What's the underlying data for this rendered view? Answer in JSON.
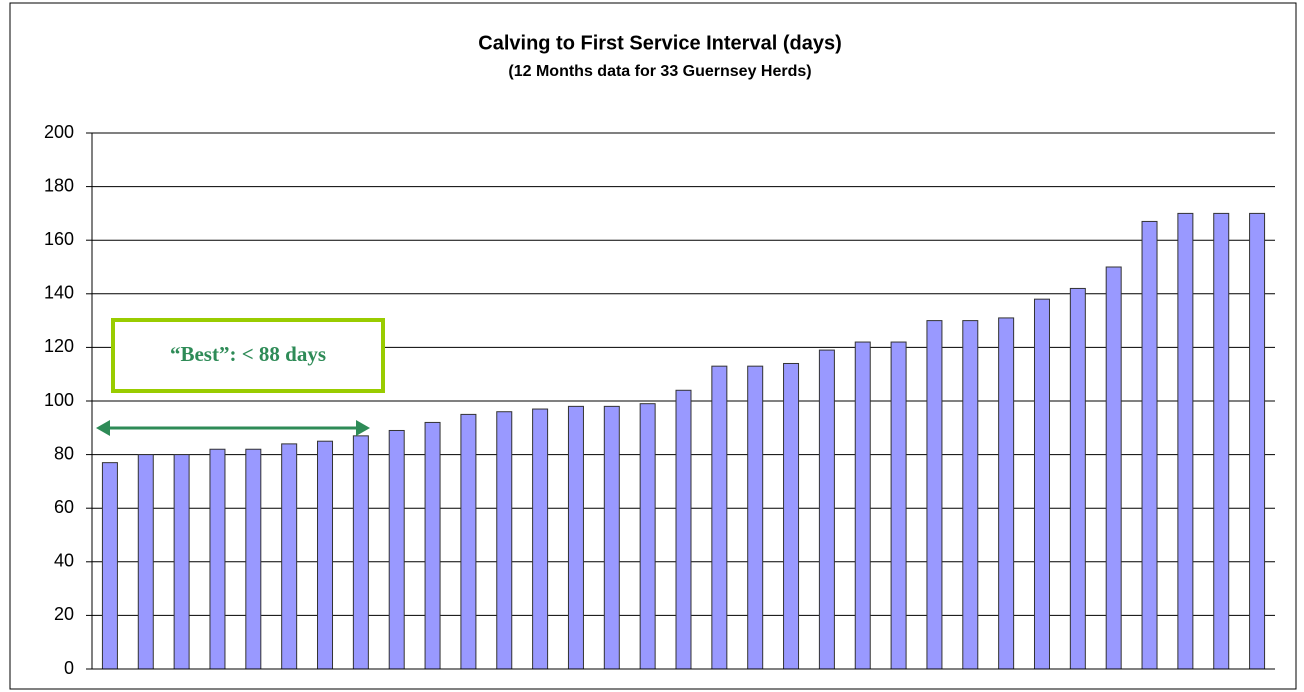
{
  "chart_data": {
    "type": "bar",
    "title": "Calving to First Service Interval (days)",
    "subtitle": "(12 Months data for 33 Guernsey Herds)",
    "annotation": "“Best”: < 88 days",
    "categories": [
      null,
      null,
      null,
      null,
      null,
      null,
      null,
      null,
      null,
      null,
      null,
      null,
      null,
      null,
      null,
      null,
      null,
      null,
      null,
      null,
      null,
      null,
      null,
      null,
      null,
      null,
      null,
      null,
      null,
      null,
      null,
      null,
      null
    ],
    "values": [
      77,
      80,
      80,
      82,
      82,
      84,
      85,
      87,
      89,
      92,
      95,
      96,
      97,
      98,
      98,
      99,
      104,
      113,
      113,
      114,
      119,
      122,
      122,
      130,
      130,
      131,
      138,
      142,
      150,
      167,
      170,
      170,
      170
    ],
    "color": "#9999ff",
    "ylim": [
      0,
      200
    ],
    "yticks": [
      0,
      20,
      40,
      60,
      80,
      100,
      120,
      140,
      160,
      180,
      200
    ],
    "grid": true
  }
}
